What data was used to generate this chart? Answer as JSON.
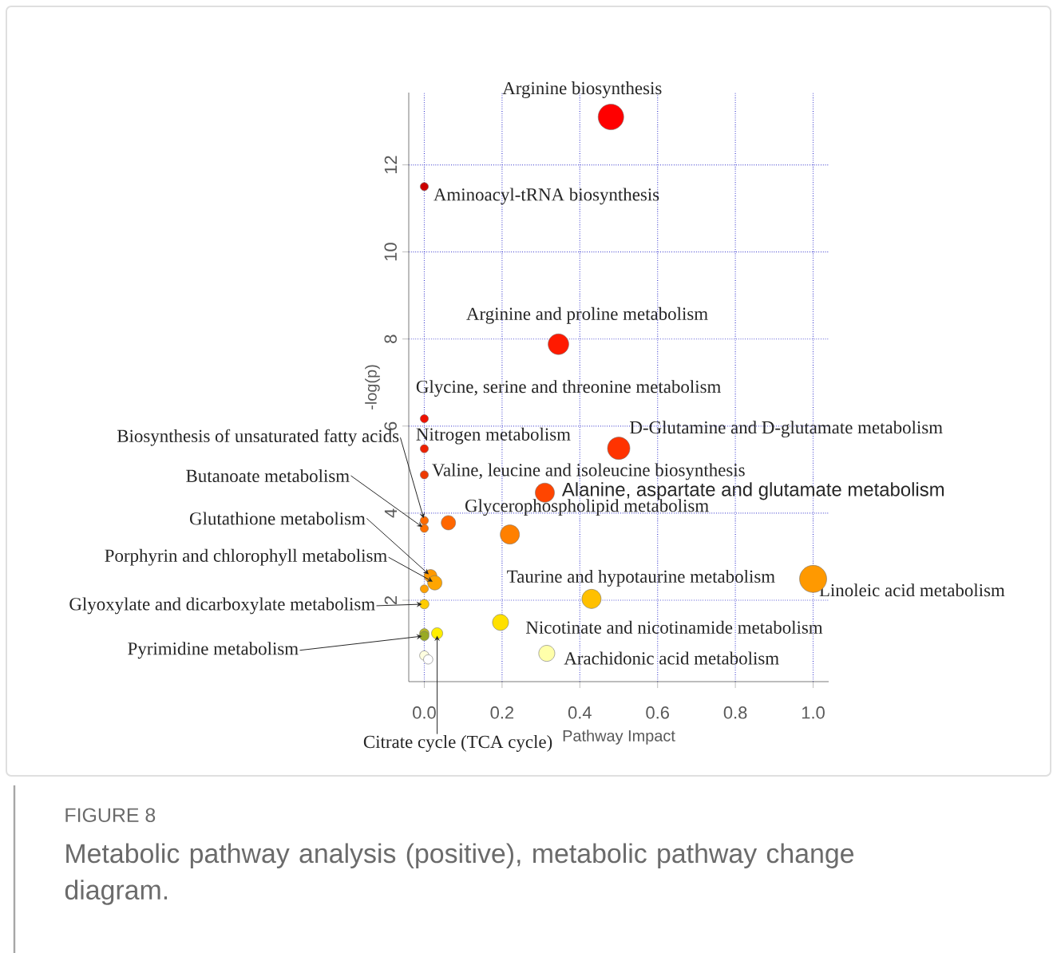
{
  "chart_data": {
    "type": "bubble",
    "grid": true,
    "xlabel": "Pathway Impact",
    "ylabel": "-log(p)",
    "xlim": [
      -0.04,
      1.04
    ],
    "ylim": [
      0.13,
      13.66
    ],
    "xticks": [
      {
        "value": 0,
        "label": "0.0"
      },
      0.2,
      0.4,
      0.6,
      0.8,
      {
        "value": 1,
        "label": "1.0"
      }
    ],
    "yticks": [
      2,
      4,
      6,
      8,
      10,
      12
    ],
    "x": [
      0.48,
      0,
      0.345,
      0,
      0,
      0.5,
      0,
      0.31,
      0,
      0,
      0.062,
      0.22,
      0.016,
      0.027,
      0,
      1.0,
      0.43,
      0,
      0.196,
      0,
      0,
      0.033,
      0.315,
      0,
      0.01
    ],
    "values": [
      13.1,
      11.5,
      7.88,
      6.17,
      5.48,
      5.49,
      4.88,
      4.47,
      3.83,
      3.65,
      3.78,
      3.51,
      2.56,
      2.4,
      2.26,
      2.49,
      2.03,
      1.91,
      1.49,
      1.24,
      1.18,
      1.24,
      0.78,
      0.73,
      0.64
    ],
    "sizes": [
      0.89,
      0.09,
      0.58,
      0.09,
      0.09,
      0.68,
      0.09,
      0.5,
      0.09,
      0.09,
      0.28,
      0.5,
      0.22,
      0.28,
      0.09,
      1,
      0.5,
      0.12,
      0.35,
      0.12,
      0.12,
      0.17,
      0.35,
      0.12,
      0.12
    ],
    "colors": [
      "#ff0000",
      "#cc0000",
      "#ff1a00",
      "#ee1000",
      "#ee2000",
      "#ff3300",
      "#ee3a00",
      "#ff4500",
      "#ff6a00",
      "#ff7000",
      "#ff6600",
      "#ff8000",
      "#ff9900",
      "#ffa500",
      "#ffa000",
      "#ff9900",
      "#ffc000",
      "#ffcc00",
      "#ffe000",
      "#bbbb22",
      "#99aa22",
      "#ffee00",
      "#ffffaa",
      "#ffffe0",
      "#ffffff"
    ],
    "annotations": [
      {
        "text": "Arginine biosynthesis",
        "x": 0.48,
        "y": 13.1
      },
      {
        "text": "Aminoacyl-tRNA biosynthesis",
        "x": 0,
        "y": 11.5
      },
      {
        "text": "Arginine and proline metabolism",
        "x": 0.345,
        "y": 7.88
      },
      {
        "text": "Glycine, serine and threonine metabolism",
        "x": 0,
        "y": 6.17
      },
      {
        "text": "Nitrogen metabolism",
        "x": 0,
        "y": 5.48
      },
      {
        "text": "D-Glutamine and D-glutamate metabolism",
        "x": 0.5,
        "y": 5.49
      },
      {
        "text": "Valine, leucine and isoleucine biosynthesis",
        "x": 0,
        "y": 4.88
      },
      {
        "text": "Alanine, aspartate and glutamate metabolism",
        "x": 0.31,
        "y": 4.47
      },
      {
        "text": "Glycerophospholipid metabolism",
        "x": 0.22,
        "y": 3.51
      },
      {
        "text": "Taurine and hypotaurine metabolism",
        "x": 0.43,
        "y": 2.03
      },
      {
        "text": "Linoleic acid metabolism",
        "x": 1.0,
        "y": 2.49
      },
      {
        "text": "Nicotinate and nicotinamide metabolism",
        "x": 0.196,
        "y": 1.49
      },
      {
        "text": "Arachidonic acid metabolism",
        "x": 0.315,
        "y": 0.78
      },
      {
        "text": "Biosynthesis of unsaturated fatty acids",
        "x": 0,
        "y": 3.83
      },
      {
        "text": "Butanoate metabolism",
        "x": 0,
        "y": 3.65
      },
      {
        "text": "Glutathione metabolism",
        "x": 0.016,
        "y": 2.56
      },
      {
        "text": "Porphyrin and chlorophyll metabolism",
        "x": 0.027,
        "y": 2.4
      },
      {
        "text": "Glyoxylate and dicarboxylate metabolism",
        "x": 0,
        "y": 1.91
      },
      {
        "text": "Pyrimidine metabolism",
        "x": 0,
        "y": 1.18
      },
      {
        "text": "Citrate cycle (TCA cycle)",
        "x": 0.033,
        "y": 1.24
      },
      "FIGURE 8",
      "Metabolic pathway analysis (positive), metabolic pathway change diagram."
    ]
  }
}
